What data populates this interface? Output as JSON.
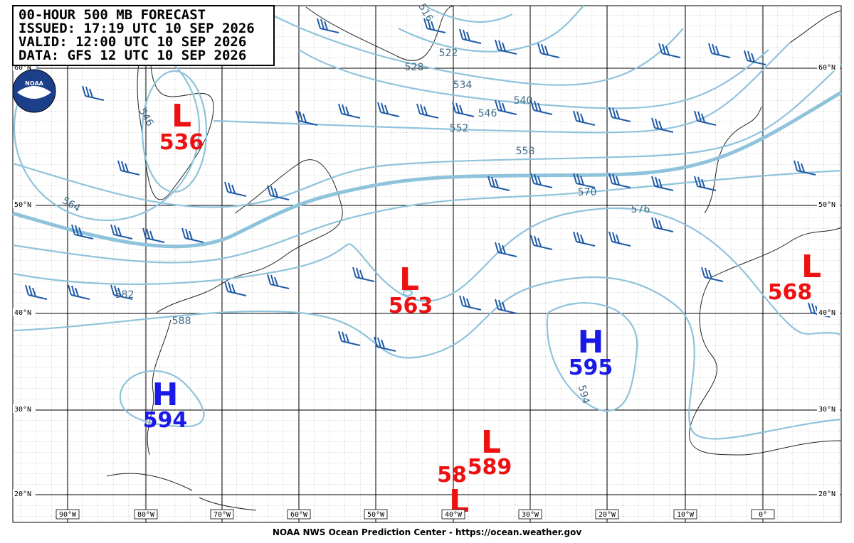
{
  "header": {
    "lines": [
      "00-HOUR 500 MB FORECAST",
      "ISSUED: 17:19 UTC 10 SEP 2026",
      "VALID:  12:00 UTC 10 SEP 2026",
      "DATA:  GFS 12 UTC 10 SEP 2026"
    ]
  },
  "logo": "NOAA",
  "lat_labels": [
    "60°N",
    "50°N",
    "40°N",
    "30°N",
    "20°N"
  ],
  "lon_labels": [
    "90°W",
    "80°W",
    "70°W",
    "60°W",
    "50°W",
    "40°W",
    "30°W",
    "20°W",
    "10°W",
    "0°"
  ],
  "centers": [
    {
      "letter": "L",
      "value": 536
    },
    {
      "letter": "L",
      "value": 563
    },
    {
      "letter": "L",
      "value": 568
    },
    {
      "letter": "H",
      "value": 595
    },
    {
      "letter": "H",
      "value": 594
    },
    {
      "letter": "L",
      "value": 589
    },
    {
      "letter": "L",
      "value": 58
    }
  ],
  "contour_labels": [
    516,
    522,
    528,
    534,
    540,
    546,
    552,
    558,
    570,
    576,
    564,
    582,
    588,
    594,
    546
  ],
  "footer": "NOAA NWS Ocean Prediction Center - https://ocean.weather.gov"
}
